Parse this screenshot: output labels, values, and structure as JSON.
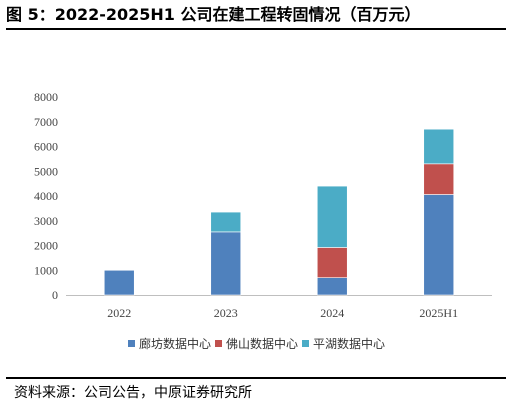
{
  "header": {
    "title": "图 5：2022-2025H1 公司在建工程转固情况（百万元）"
  },
  "footer": {
    "source": "资料来源：公司公告，中原证券研究所"
  },
  "colors": {
    "series": [
      "#4f81bd",
      "#c0504d",
      "#4bacc6"
    ]
  },
  "chart_data": {
    "type": "bar",
    "stacked": true,
    "categories": [
      "2022",
      "2023",
      "2024",
      "2025H1"
    ],
    "series": [
      {
        "name": "廊坊数据中心",
        "values": [
          1000,
          2550,
          700,
          4060
        ]
      },
      {
        "name": "佛山数据中心",
        "values": [
          0,
          0,
          1220,
          1240
        ]
      },
      {
        "name": "平湖数据中心",
        "values": [
          0,
          800,
          2480,
          1400
        ]
      }
    ],
    "ylim": [
      0,
      8000
    ],
    "yticks": [
      0,
      1000,
      2000,
      3000,
      4000,
      5000,
      6000,
      7000,
      8000
    ],
    "grid": false,
    "legend_position": "bottom"
  }
}
